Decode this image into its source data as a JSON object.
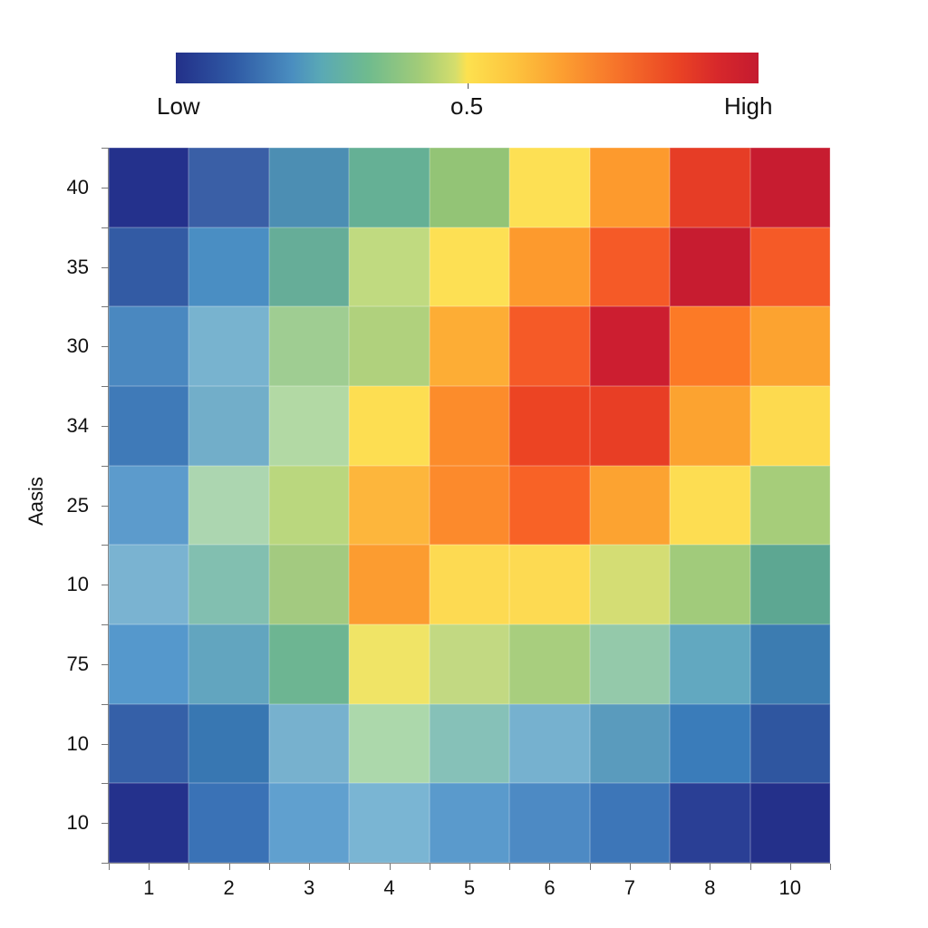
{
  "chart_data": {
    "type": "heatmap",
    "title": "",
    "xlabel": "",
    "ylabel": "Aasis",
    "x_categories": [
      "1",
      "2",
      "3",
      "4",
      "5",
      "6",
      "7",
      "8",
      "10"
    ],
    "y_categories_top_to_bottom": [
      "40",
      "35",
      "30",
      "34",
      "25",
      "10",
      "75",
      "10",
      "10"
    ],
    "colorbar": {
      "labels": [
        "Low",
        "o.5",
        "High"
      ],
      "range": [
        0,
        1
      ],
      "colormap": "RdYlBu_r (blue=Low, yellow=0.5, red=High)",
      "position": "top"
    },
    "values": [
      [
        0.02,
        0.1,
        0.2,
        0.3,
        0.4,
        0.52,
        0.66,
        0.86,
        0.96
      ],
      [
        0.1,
        0.18,
        0.3,
        0.42,
        0.51,
        0.65,
        0.78,
        0.96,
        0.78
      ],
      [
        0.17,
        0.22,
        0.35,
        0.38,
        0.6,
        0.78,
        0.96,
        0.72,
        0.62
      ],
      [
        0.15,
        0.24,
        0.35,
        0.51,
        0.68,
        0.85,
        0.85,
        0.62,
        0.51
      ],
      [
        0.2,
        0.33,
        0.4,
        0.58,
        0.68,
        0.8,
        0.63,
        0.51,
        0.38
      ],
      [
        0.22,
        0.28,
        0.38,
        0.62,
        0.51,
        0.51,
        0.44,
        0.36,
        0.3
      ],
      [
        0.18,
        0.24,
        0.3,
        0.48,
        0.42,
        0.38,
        0.32,
        0.24,
        0.15
      ],
      [
        0.1,
        0.15,
        0.22,
        0.33,
        0.26,
        0.22,
        0.2,
        0.15,
        0.08
      ],
      [
        0.02,
        0.14,
        0.19,
        0.23,
        0.18,
        0.16,
        0.13,
        0.04,
        0.02
      ]
    ],
    "cell_colors": [
      [
        "#24318c",
        "#3a5fa6",
        "#4c8eb3",
        "#65b095",
        "#93c476",
        "#fde054",
        "#fd9a2d",
        "#e63d26",
        "#c71c30"
      ],
      [
        "#335ba4",
        "#4a8ec3",
        "#66ad98",
        "#c0da80",
        "#fde054",
        "#fd9a2d",
        "#f55a27",
        "#c71c30",
        "#f55a27"
      ],
      [
        "#4a88c0",
        "#78b3cf",
        "#9fcd92",
        "#b0d17d",
        "#fdad35",
        "#f55a27",
        "#cc1e30",
        "#fc7a26",
        "#fca330"
      ],
      [
        "#3f7ab8",
        "#72aec9",
        "#b2d9a4",
        "#fdde52",
        "#fc8c2b",
        "#ec4423",
        "#e83e25",
        "#fca330",
        "#fdda4f"
      ],
      [
        "#5c9bcc",
        "#acd6b0",
        "#bad77e",
        "#fdb63c",
        "#fc8a2c",
        "#f86226",
        "#fca331",
        "#fddd52",
        "#a6cd7a"
      ],
      [
        "#7ab3d1",
        "#82bfb0",
        "#a3ca80",
        "#fc9c30",
        "#fdda52",
        "#fdda52",
        "#d4dd74",
        "#a1cb7b",
        "#5da792"
      ],
      [
        "#5598cc",
        "#62a5bf",
        "#6db592",
        "#f0e466",
        "#c2d982",
        "#a8ce7e",
        "#94c9aa",
        "#62a8c0",
        "#3c7cb1"
      ],
      [
        "#3560a8",
        "#3877b2",
        "#77b1ce",
        "#acd8ab",
        "#86c1b8",
        "#76b1cf",
        "#5a9bbd",
        "#3a7cba",
        "#2f56a0"
      ],
      [
        "#24318c",
        "#3a72b6",
        "#60a0cf",
        "#7ab5d3",
        "#5a9acc",
        "#4d8ac4",
        "#3d76b8",
        "#2a3f95",
        "#24308a"
      ]
    ]
  }
}
